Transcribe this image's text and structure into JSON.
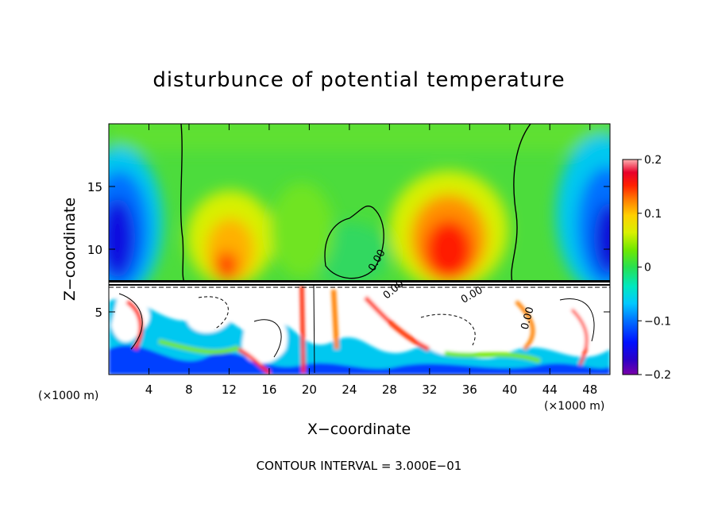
{
  "chart_data": {
    "type": "heatmap",
    "title": "disturbunce of potential temperature",
    "xlabel": "X−coordinate",
    "ylabel": "Z−coordinate",
    "x_unit": "(×1000 m)",
    "x_unit_right": "(×1000 m)",
    "xlim": [
      0,
      50
    ],
    "ylim": [
      0,
      20
    ],
    "x_ticks": [
      4,
      8,
      12,
      16,
      20,
      24,
      28,
      32,
      36,
      40,
      44,
      48
    ],
    "y_ticks": [
      5,
      10,
      15
    ],
    "colorbar": {
      "ticks": [
        0.2,
        0.1,
        0,
        -0.1,
        -0.2
      ],
      "tick_labels": [
        "0.2",
        "0.1",
        "0",
        "−0.1",
        "−0.2"
      ],
      "range": [
        -0.2,
        0.2
      ]
    },
    "contour_labels": [
      "0.00",
      "0.00",
      "0.00",
      "0.00"
    ],
    "note": "CONTOUR INTERVAL = 3.000E−01"
  }
}
